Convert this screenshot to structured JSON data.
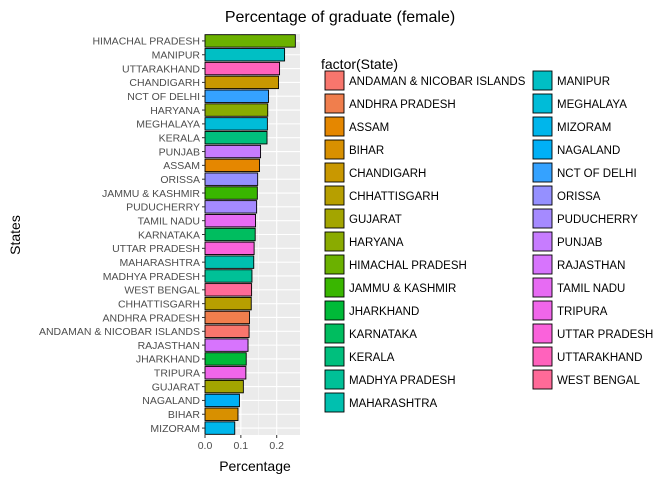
{
  "chart_data": {
    "type": "bar",
    "orientation": "horizontal",
    "title": "Percentage of graduate (female)",
    "xlabel": "Percentage",
    "ylabel": "States",
    "xlim": [
      0,
      0.265
    ],
    "xticks": [
      0.0,
      0.1,
      0.2
    ],
    "xtick_labels": [
      "0.0",
      "0.1",
      "0.2"
    ],
    "grid": true,
    "categories": [
      "HIMACHAL PRADESH",
      "MANIPUR",
      "UTTARAKHAND",
      "CHANDIGARH",
      "NCT OF DELHI",
      "HARYANA",
      "MEGHALAYA",
      "KERALA",
      "PUNJAB",
      "ASSAM",
      "ORISSA",
      "JAMMU & KASHMIR",
      "PUDUCHERRY",
      "TAMIL NADU",
      "KARNATAKA",
      "UTTAR PRADESH",
      "MAHARASHTRA",
      "MADHYA PRADESH",
      "WEST BENGAL",
      "CHHATTISGARH",
      "ANDHRA PRADESH",
      "ANDAMAN & NICOBAR ISLANDS",
      "RAJASTHAN",
      "JHARKHAND",
      "TRIPURA",
      "GUJARAT",
      "NAGALAND",
      "BIHAR",
      "MIZORAM"
    ],
    "values": [
      0.252,
      0.222,
      0.208,
      0.205,
      0.177,
      0.175,
      0.174,
      0.173,
      0.155,
      0.152,
      0.147,
      0.146,
      0.144,
      0.141,
      0.14,
      0.137,
      0.136,
      0.131,
      0.13,
      0.129,
      0.124,
      0.123,
      0.12,
      0.115,
      0.114,
      0.107,
      0.096,
      0.092,
      0.083
    ],
    "legend": {
      "title": "factor(State)",
      "position": "right",
      "items": [
        {
          "label": "ANDAMAN & NICOBAR ISLANDS",
          "color": "#F8766D"
        },
        {
          "label": "ANDHRA PRADESH",
          "color": "#F07E4D"
        },
        {
          "label": "ASSAM",
          "color": "#E58700"
        },
        {
          "label": "BIHAR",
          "color": "#D89000"
        },
        {
          "label": "CHANDIGARH",
          "color": "#C99800"
        },
        {
          "label": "CHHATTISGARH",
          "color": "#B79F00"
        },
        {
          "label": "GUJARAT",
          "color": "#A3A500"
        },
        {
          "label": "HARYANA",
          "color": "#8AAB00"
        },
        {
          "label": "HIMACHAL PRADESH",
          "color": "#6BB100"
        },
        {
          "label": "JAMMU & KASHMIR",
          "color": "#39B600"
        },
        {
          "label": "JHARKHAND",
          "color": "#00BA38"
        },
        {
          "label": "KARNATAKA",
          "color": "#00BD5F"
        },
        {
          "label": "KERALA",
          "color": "#00BF7D"
        },
        {
          "label": "MADHYA PRADESH",
          "color": "#00C097"
        },
        {
          "label": "MAHARASHTRA",
          "color": "#00C0AF"
        },
        {
          "label": "MANIPUR",
          "color": "#00BFC4"
        },
        {
          "label": "MEGHALAYA",
          "color": "#00BCD8"
        },
        {
          "label": "MIZORAM",
          "color": "#00B6EB"
        },
        {
          "label": "NAGALAND",
          "color": "#00B0F6"
        },
        {
          "label": "NCT OF DELHI",
          "color": "#35A2FF"
        },
        {
          "label": "ORISSA",
          "color": "#9590FF"
        },
        {
          "label": "PUDUCHERRY",
          "color": "#A58AFF"
        },
        {
          "label": "PUNJAB",
          "color": "#C77CFF"
        },
        {
          "label": "RAJASTHAN",
          "color": "#D774FD"
        },
        {
          "label": "TAMIL NADU",
          "color": "#E76BF3"
        },
        {
          "label": "TRIPURA",
          "color": "#F066EA"
        },
        {
          "label": "UTTAR PRADESH",
          "color": "#FA62DB"
        },
        {
          "label": "UTTARAKHAND",
          "color": "#FF62BC"
        },
        {
          "label": "WEST BENGAL",
          "color": "#FF6A98"
        }
      ]
    }
  }
}
